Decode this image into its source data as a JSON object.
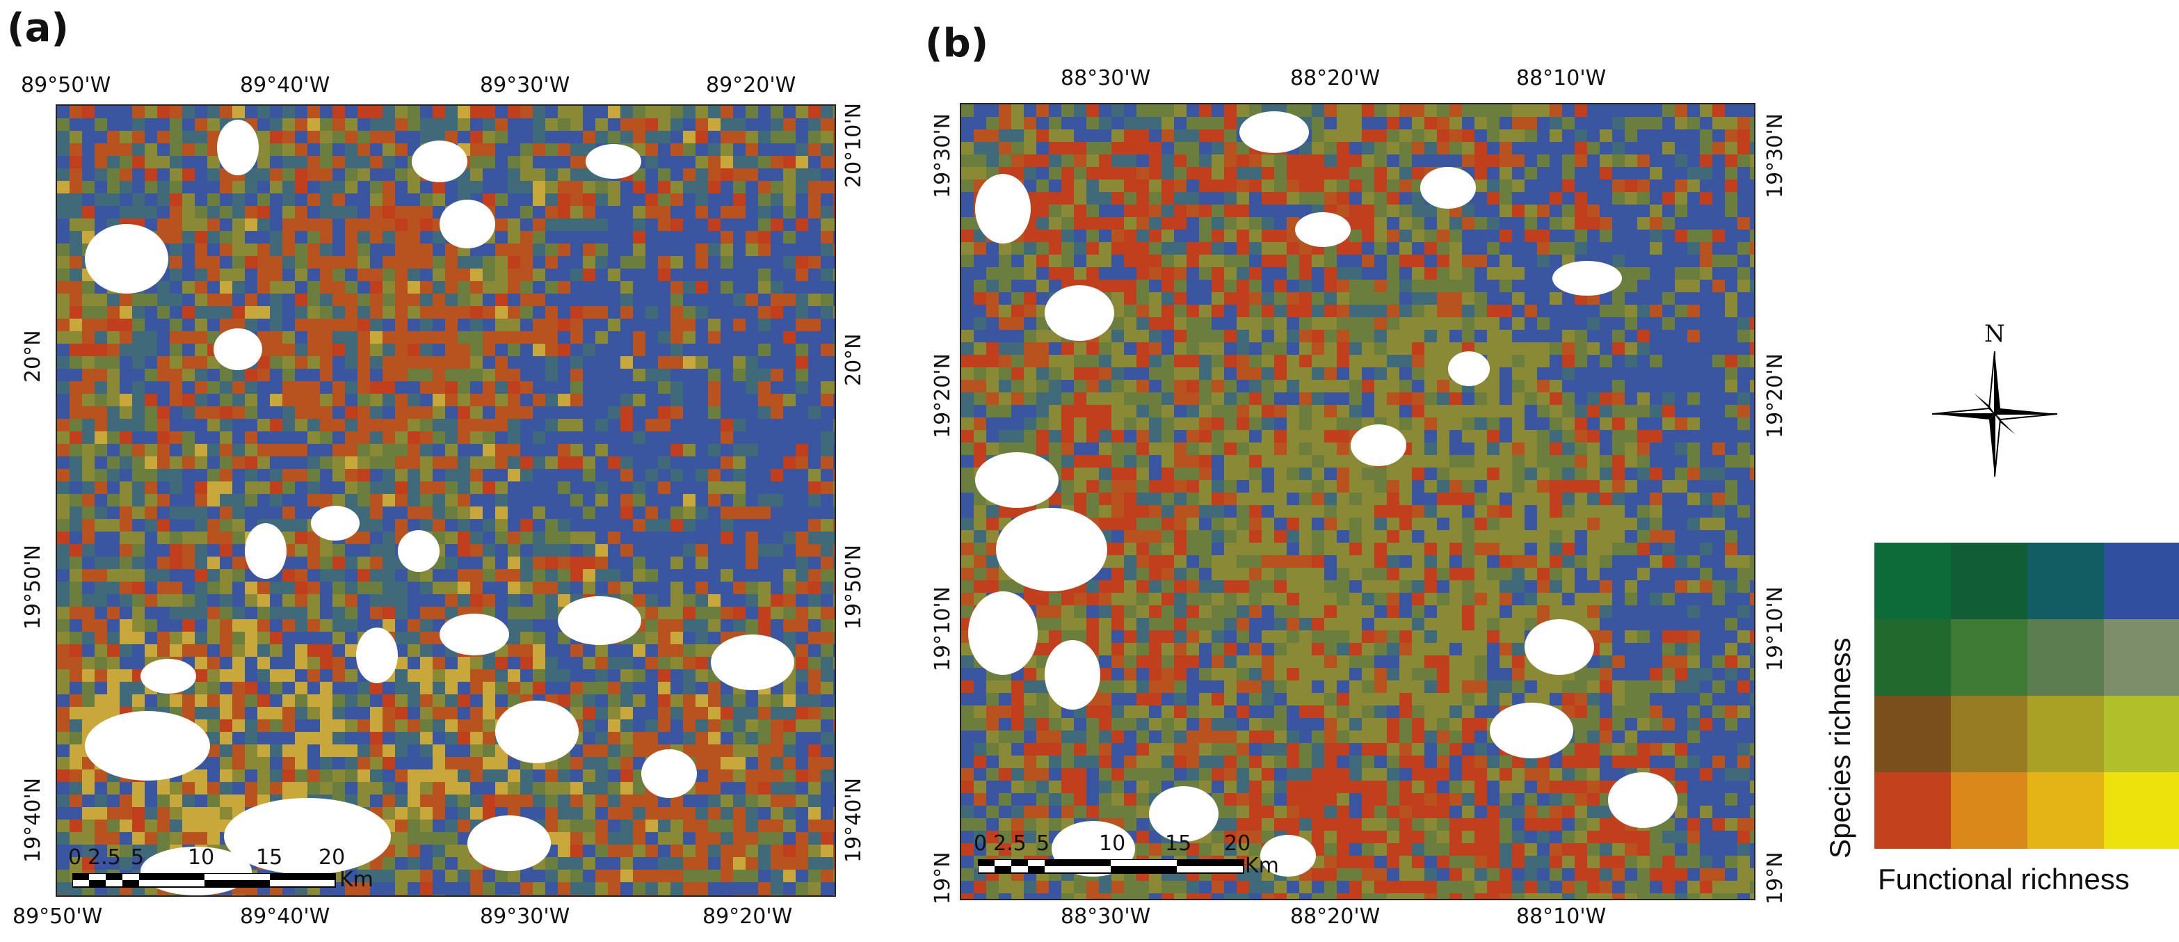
{
  "panels": [
    {
      "label": "(a)",
      "top_ticks": [
        "89°50'W",
        "89°40'W",
        "89°30'W",
        "89°20'W"
      ],
      "bottom_ticks": [
        "89°50'W",
        "89°40'W",
        "89°30'W",
        "89°20'W"
      ],
      "left_ticks": [
        "20°N",
        "19°50'N",
        "19°40'N"
      ],
      "right_ticks": [
        "20°10'N",
        "20°N",
        "19°50'N",
        "19°40'N"
      ]
    },
    {
      "label": "(b)",
      "top_ticks": [
        "88°30'W",
        "88°20'W",
        "88°10'W"
      ],
      "bottom_ticks": [
        "88°30'W",
        "88°20'W",
        "88°10'W"
      ],
      "left_ticks": [
        "19°30'N",
        "19°20'N",
        "19°10'N",
        "19°N"
      ],
      "right_ticks": [
        "19°30'N",
        "19°20'N",
        "19°10'N",
        "19°N"
      ]
    }
  ],
  "scalebar": {
    "labels": [
      "0",
      "2.5",
      "5",
      "10",
      "15",
      "20"
    ],
    "unit": "Km"
  },
  "north_arrow": {
    "letter": "N",
    "icon": "compass-rose-icon"
  },
  "legend": {
    "y_title": "Species richness",
    "x_title": "Functional richness",
    "colors": [
      [
        "#0d6b3a",
        "#115e36",
        "#125c63",
        "#2d4f9e"
      ],
      [
        "#1f6a2c",
        "#3f7a34",
        "#5b7e50",
        "#7c8e6a"
      ],
      [
        "#7a4f1c",
        "#977c24",
        "#a8a126",
        "#b1c02a"
      ],
      [
        "#c2421e",
        "#d9881a",
        "#e4b416",
        "#eee20c"
      ]
    ]
  },
  "map_palette": {
    "blue": "#3a56a0",
    "teal": "#3f6a7a",
    "green": "#6a7f3e",
    "olive": "#8a8a36",
    "orange": "#b8521e",
    "red": "#c0401e",
    "yellow": "#c8a83a",
    "cleared": "#ffffff"
  }
}
